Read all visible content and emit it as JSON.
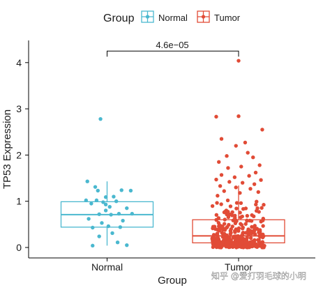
{
  "chart_data": {
    "type": "box-jitter",
    "xlabel": "Group",
    "ylabel": "TP53 Expression",
    "ylim": [
      0,
      4.4
    ],
    "yticks": [
      0,
      1,
      2,
      3,
      4
    ],
    "categories": [
      "Normal",
      "Tumor"
    ],
    "legend": {
      "title": "Group",
      "position": "top",
      "entries": [
        "Normal",
        "Tumor"
      ]
    },
    "colors": {
      "Normal": "#4ab8cf",
      "Tumor": "#e14b36"
    },
    "boxes": [
      {
        "group": "Normal",
        "q1": 0.44,
        "median": 0.71,
        "q3": 0.99,
        "whisker_low": 0.04,
        "whisker_high": 1.43
      },
      {
        "group": "Tumor",
        "q1": 0.1,
        "median": 0.25,
        "q3": 0.6,
        "whisker_low": 0.0,
        "whisker_high": 1.34
      }
    ],
    "points": {
      "Normal": [
        [
          0.95,
          2.78
        ],
        [
          0.85,
          1.43
        ],
        [
          1.18,
          1.23
        ],
        [
          0.91,
          1.31
        ],
        [
          0.93,
          1.23
        ],
        [
          1.11,
          1.24
        ],
        [
          1.05,
          1.1
        ],
        [
          0.99,
          1.09
        ],
        [
          0.84,
          1.02
        ],
        [
          0.92,
          1.02
        ],
        [
          0.97,
          0.98
        ],
        [
          1.07,
          1.0
        ],
        [
          0.88,
          0.95
        ],
        [
          0.99,
          0.93
        ],
        [
          1.02,
          0.88
        ],
        [
          1.15,
          0.85
        ],
        [
          0.99,
          0.8
        ],
        [
          1.09,
          0.73
        ],
        [
          1.19,
          0.73
        ],
        [
          0.94,
          0.72
        ],
        [
          1.03,
          0.71
        ],
        [
          0.86,
          0.62
        ],
        [
          1.12,
          0.58
        ],
        [
          0.96,
          0.53
        ],
        [
          1.01,
          0.46
        ],
        [
          1.1,
          0.44
        ],
        [
          0.89,
          0.43
        ],
        [
          1.04,
          0.31
        ],
        [
          0.94,
          0.24
        ],
        [
          1.08,
          0.11
        ],
        [
          1.15,
          0.05
        ],
        [
          0.89,
          0.04
        ]
      ],
      "Tumor": [
        [
          2.0,
          4.04
        ],
        [
          2.0,
          2.84
        ],
        [
          1.83,
          2.83
        ],
        [
          2.18,
          2.55
        ],
        [
          1.87,
          2.35
        ],
        [
          1.98,
          2.2
        ],
        [
          2.05,
          2.27
        ],
        [
          2.07,
          2.05
        ],
        [
          1.91,
          1.98
        ],
        [
          2.11,
          1.95
        ],
        [
          1.85,
          1.85
        ],
        [
          2.16,
          1.78
        ],
        [
          1.92,
          1.72
        ],
        [
          2.02,
          1.75
        ],
        [
          2.13,
          1.62
        ],
        [
          1.87,
          1.57
        ],
        [
          1.97,
          1.52
        ],
        [
          2.08,
          1.55
        ],
        [
          1.83,
          1.47
        ],
        [
          2.17,
          1.46
        ],
        [
          1.93,
          1.42
        ],
        [
          2.03,
          1.4
        ],
        [
          2.12,
          1.37
        ],
        [
          1.86,
          1.33
        ],
        [
          1.98,
          1.3
        ],
        [
          2.09,
          1.27
        ],
        [
          1.89,
          1.22
        ],
        [
          2.15,
          1.2
        ],
        [
          2.01,
          1.18
        ],
        [
          1.84,
          1.12
        ]
      ],
      "Tumor_dense_count": 330
    },
    "annotations": [
      {
        "text": "4.6e−05",
        "from": "Normal",
        "to": "Tumor",
        "y": 4.25
      }
    ]
  },
  "watermark": "知乎 @爱打羽毛球的小明"
}
